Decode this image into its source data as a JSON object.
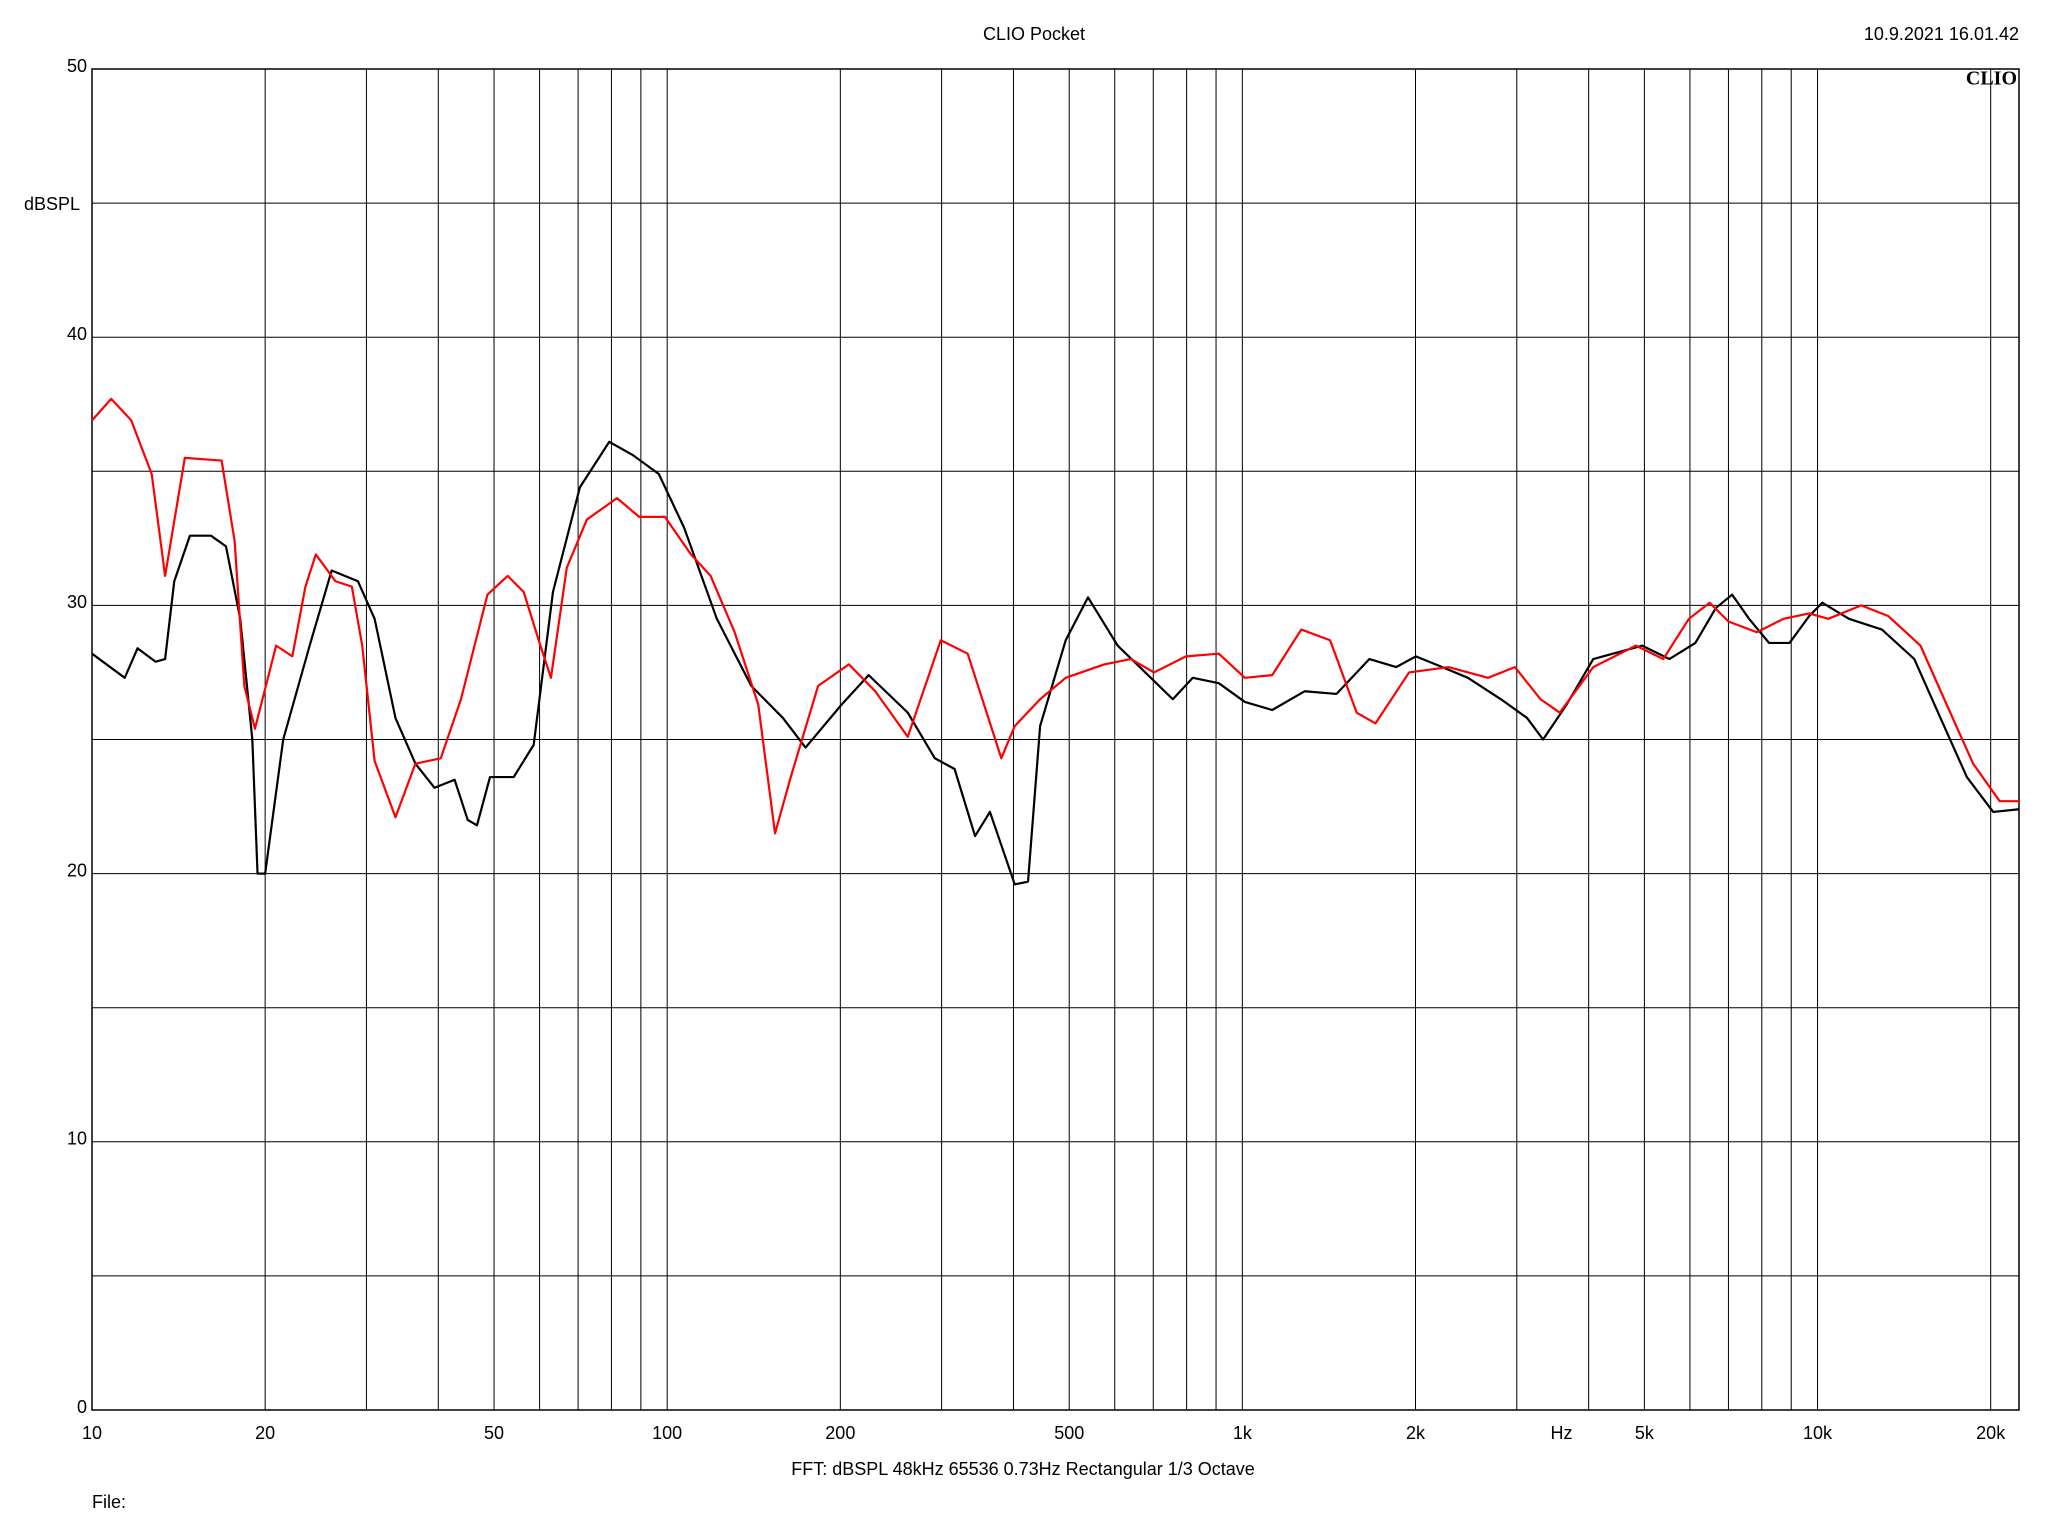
{
  "chart_data": {
    "type": "line",
    "title": "CLIO Pocket",
    "timestamp": "10.9.2021 16.01.42",
    "logo": "CLIO",
    "y_label": "dBSPL",
    "x_unit": "Hz",
    "footer": "FFT:  dBSPL  48kHz   65536  0.73Hz  Rectangular  1/3 Octave",
    "file_label": "File:",
    "log_x": true,
    "grid": true,
    "xlim": [
      10,
      22400
    ],
    "ylim": [
      0,
      50
    ],
    "xticks": [
      10,
      20,
      50,
      100,
      200,
      500,
      {
        "value": 1000,
        "label": "1k"
      },
      {
        "value": 2000,
        "label": "2k"
      },
      {
        "value": 5000,
        "label": "5k"
      },
      {
        "value": 10000,
        "label": "10k"
      },
      {
        "value": 20000,
        "label": "20k"
      }
    ],
    "xgrid": [
      30,
      40,
      60,
      70,
      80,
      90,
      300,
      400,
      600,
      700,
      800,
      900,
      3000,
      4000,
      6000,
      7000,
      8000,
      9000
    ],
    "yticks": [
      0,
      10,
      20,
      30,
      40,
      50
    ],
    "ygrid": [
      5,
      15,
      25,
      35,
      45
    ],
    "series": [
      {
        "color": "#000000",
        "x": [
          10,
          11.4,
          12,
          12.9,
          13.4,
          13.9,
          14.8,
          16.1,
          17.1,
          18.1,
          19,
          19.4,
          20,
          21.5,
          23.9,
          26.1,
          29,
          31,
          33.7,
          36.5,
          39.4,
          42.7,
          45,
          46.7,
          49.2,
          54.1,
          58.6,
          63.3,
          70.5,
          79.3,
          87.2,
          96.7,
          107,
          122,
          140,
          159,
          174,
          201,
          224,
          262,
          292,
          316,
          343,
          364,
          402,
          424,
          445,
          493,
          539,
          607,
          678,
          757,
          820,
          910,
          1010,
          1127,
          1284,
          1458,
          1663,
          1851,
          2003,
          2227,
          2467,
          2816,
          3127,
          3333,
          3662,
          4074,
          4955,
          5525,
          6132,
          6655,
          7103,
          7603,
          8235,
          8939,
          9669,
          10190,
          11340,
          12940,
          14730,
          16360,
          18180,
          20200,
          22400
        ],
        "values": [
          28.2,
          27.3,
          28.4,
          27.9,
          28.0,
          30.9,
          32.6,
          32.6,
          32.2,
          29.5,
          25.0,
          20.0,
          20.0,
          25.0,
          28.5,
          31.3,
          30.9,
          29.5,
          25.8,
          24.1,
          23.2,
          23.5,
          22.0,
          21.8,
          23.6,
          23.6,
          24.8,
          30.5,
          34.4,
          36.1,
          35.6,
          34.9,
          32.9,
          29.5,
          27.0,
          25.8,
          24.7,
          26.3,
          27.4,
          26.0,
          24.3,
          23.9,
          21.4,
          22.3,
          19.6,
          19.7,
          25.5,
          28.7,
          30.3,
          28.5,
          27.5,
          26.5,
          27.3,
          27.1,
          26.4,
          26.1,
          26.8,
          26.7,
          28.0,
          27.7,
          28.1,
          27.7,
          27.3,
          26.5,
          25.8,
          25.0,
          26.3,
          28.0,
          28.5,
          28.0,
          28.6,
          29.9,
          30.4,
          29.5,
          28.6,
          28.6,
          29.6,
          30.1,
          29.5,
          29.1,
          28.0,
          25.8,
          23.6,
          22.3,
          22.4
        ]
      },
      {
        "color": "#ff0000",
        "x": [
          10,
          10.8,
          11.7,
          12.7,
          13.4,
          14.5,
          16.8,
          17.7,
          18.4,
          19.2,
          20.9,
          22.3,
          23.5,
          24.5,
          26.5,
          28.3,
          29.5,
          31,
          33.7,
          36.5,
          40.4,
          43.8,
          48.7,
          52.8,
          56.3,
          60.2,
          62.8,
          66.9,
          72.5,
          81.8,
          89.4,
          99.1,
          110,
          119,
          131,
          144,
          154,
          164,
          183,
          207,
          230,
          262,
          299,
          333,
          381,
          402,
          445,
          493,
          575,
          640,
          702,
          798,
          910,
          1010,
          1127,
          1266,
          1421,
          1580,
          1704,
          1949,
          2282,
          2674,
          2977,
          3300,
          3563,
          4074,
          4834,
          5391,
          5976,
          6493,
          7001,
          7841,
          8727,
          9669,
          10440,
          11910,
          13280,
          15100,
          16770,
          18640,
          20730,
          22400
        ],
        "values": [
          36.9,
          37.7,
          36.9,
          34.9,
          31.1,
          35.5,
          35.4,
          32.4,
          27.0,
          25.4,
          28.5,
          28.1,
          30.7,
          31.9,
          30.9,
          30.7,
          28.5,
          24.2,
          22.1,
          24.1,
          24.3,
          26.5,
          30.4,
          31.1,
          30.5,
          28.5,
          27.3,
          31.4,
          33.2,
          34.0,
          33.3,
          33.3,
          31.9,
          31.1,
          29.0,
          26.3,
          21.5,
          23.6,
          27.0,
          27.8,
          26.8,
          25.1,
          28.7,
          28.2,
          24.3,
          25.5,
          26.5,
          27.3,
          27.8,
          28.0,
          27.5,
          28.1,
          28.2,
          27.3,
          27.4,
          29.1,
          28.7,
          26.0,
          25.6,
          27.5,
          27.7,
          27.3,
          27.7,
          26.5,
          26.0,
          27.7,
          28.5,
          28.0,
          29.5,
          30.1,
          29.4,
          29.0,
          29.5,
          29.7,
          29.5,
          30.0,
          29.6,
          28.5,
          26.3,
          24.1,
          22.7,
          22.7
        ]
      }
    ]
  }
}
